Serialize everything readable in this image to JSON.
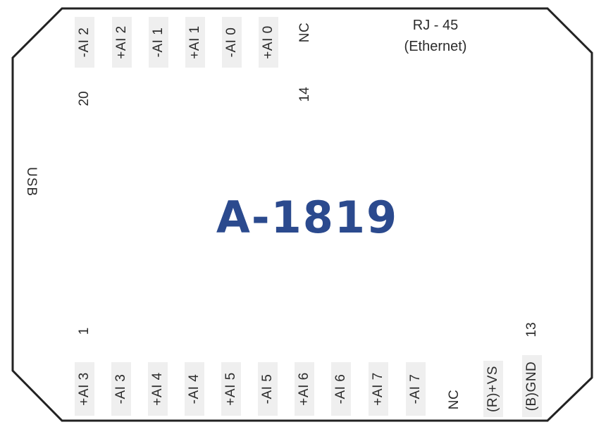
{
  "model": "A-1819",
  "colors": {
    "model": "#2b4a8e",
    "outline": "#222222",
    "pin_bg": "#efefef",
    "text": "#2b2b2b"
  },
  "usb_label": "USB",
  "rj45": {
    "line1": "RJ - 45",
    "line2": "(Ethernet)"
  },
  "top_pins": [
    "-AI 2",
    "+AI 2",
    "-AI 1",
    "+AI 1",
    "-AI 0",
    "+AI 0",
    "NC"
  ],
  "top_numbers": {
    "left": "20",
    "right": "14"
  },
  "bottom_pins": [
    "+AI 3",
    "-AI 3",
    "+AI 4",
    "-AI 4",
    "+AI 5",
    "-AI 5",
    "+AI 6",
    "-AI 6",
    "+AI 7",
    "-AI 7",
    "NC",
    "(R)+VS",
    "(B)GND"
  ],
  "bottom_numbers": {
    "left": "1",
    "right": "13"
  }
}
